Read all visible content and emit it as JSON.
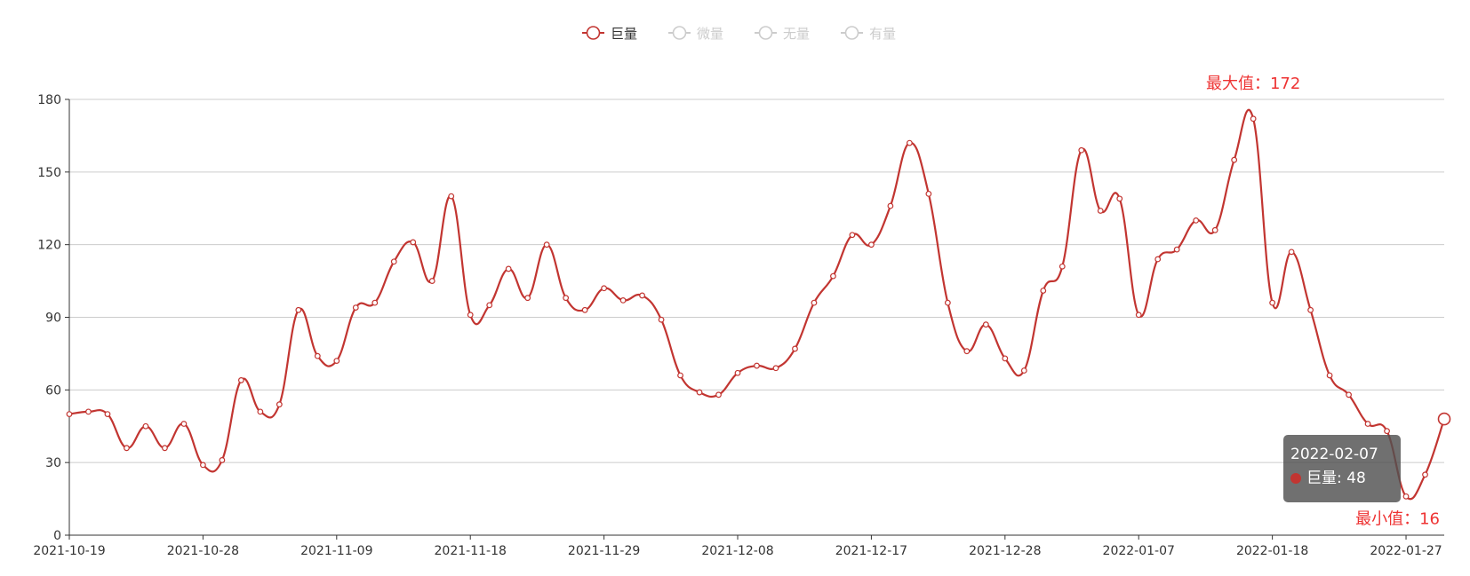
{
  "chart_data": {
    "type": "line",
    "legend": {
      "placement": "top-center",
      "items": [
        {
          "label": "巨量",
          "active": true
        },
        {
          "label": "微量",
          "active": false
        },
        {
          "label": "无量",
          "active": false
        },
        {
          "label": "有量",
          "active": false
        }
      ]
    },
    "x_ticks": [
      "2021-10-19",
      "2021-10-28",
      "2021-11-09",
      "2021-11-18",
      "2021-11-29",
      "2021-12-08",
      "2021-12-17",
      "2021-12-28",
      "2022-01-07",
      "2022-01-18",
      "2022-01-27"
    ],
    "ylim": [
      0,
      180
    ],
    "y_ticks": [
      0,
      30,
      60,
      90,
      120,
      150,
      180
    ],
    "grid": true,
    "series": [
      {
        "name": "巨量",
        "values": [
          50,
          51,
          50,
          36,
          45,
          36,
          46,
          29,
          31,
          64,
          51,
          54,
          93,
          74,
          72,
          94,
          96,
          113,
          121,
          105,
          140,
          91,
          95,
          110,
          98,
          120,
          98,
          93,
          102,
          97,
          99,
          89,
          66,
          59,
          58,
          67,
          70,
          69,
          77,
          96,
          107,
          124,
          120,
          136,
          162,
          141,
          96,
          76,
          87,
          73,
          68,
          101,
          111,
          159,
          134,
          139,
          91,
          114,
          118,
          130,
          126,
          155,
          172,
          96,
          117,
          93,
          66,
          58,
          46,
          43,
          16,
          25,
          48
        ]
      }
    ],
    "markers": {
      "max_label": "最大值：172",
      "min_label": "最小值：16"
    },
    "tooltip": {
      "date": "2022-02-07",
      "series_label": "巨量: 48"
    },
    "colors": {
      "series": "#c23531",
      "mark_label": "#ee3333",
      "inactive": "#cccccc",
      "grid": "#cccccc",
      "axis": "#333333"
    }
  }
}
